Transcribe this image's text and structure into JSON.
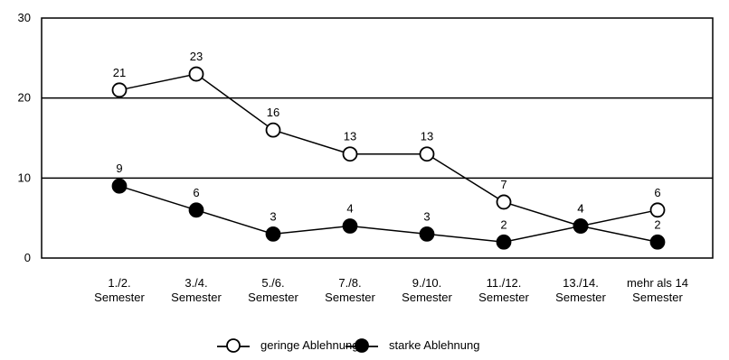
{
  "chart_data": {
    "type": "line",
    "title": "",
    "xlabel": "",
    "ylabel": "",
    "ylim": [
      0,
      30
    ],
    "yticks": [
      "0",
      "10",
      "20",
      "30"
    ],
    "grid": "horizontal",
    "legend_position": "bottom",
    "categories": [
      [
        "1./2.",
        "Semester"
      ],
      [
        "3./4.",
        "Semester"
      ],
      [
        "5./6.",
        "Semester"
      ],
      [
        "7./8.",
        "Semester"
      ],
      [
        "9./10.",
        "Semester"
      ],
      [
        "11./12.",
        "Semester"
      ],
      [
        "13./14.",
        "Semester"
      ],
      [
        "mehr als 14",
        "Semester"
      ]
    ],
    "series": [
      {
        "name": "geringe Ablehnung",
        "values": [
          21,
          23,
          16,
          13,
          13,
          7,
          4,
          6
        ],
        "labels": [
          "21",
          "23",
          "16",
          "13",
          "13",
          "7",
          "4",
          "6"
        ],
        "marker": "open-circle",
        "color": "#000000"
      },
      {
        "name": "starke Ablehnung",
        "values": [
          9,
          6,
          3,
          4,
          3,
          2,
          4,
          2
        ],
        "labels": [
          "9",
          "6",
          "3",
          "4",
          "3",
          "2",
          "4",
          "2"
        ],
        "marker": "filled-circle",
        "color": "#000000"
      }
    ]
  }
}
